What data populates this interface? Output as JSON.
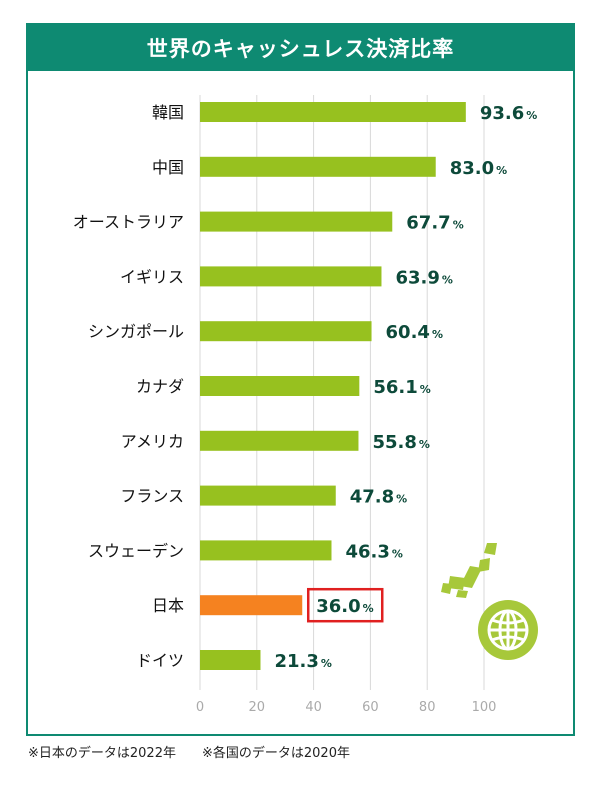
{
  "chart_data": {
    "type": "bar",
    "orientation": "horizontal",
    "title": "世界のキャッシュレス決済比率",
    "categories": [
      "韓国",
      "中国",
      "オーストラリア",
      "イギリス",
      "シンガポール",
      "カナダ",
      "アメリカ",
      "フランス",
      "スウェーデン",
      "日本",
      "ドイツ"
    ],
    "values": [
      93.6,
      83.0,
      67.7,
      63.9,
      60.4,
      56.1,
      55.8,
      47.8,
      46.3,
      36.0,
      21.3
    ],
    "value_labels": [
      "93.6",
      "83.0",
      "67.7",
      "63.9",
      "60.4",
      "56.1",
      "55.8",
      "47.8",
      "46.3",
      "36.0",
      "21.3"
    ],
    "unit": "%",
    "xlim": [
      0,
      100
    ],
    "xticks": [
      "0",
      "20",
      "40",
      "60",
      "80",
      "100"
    ],
    "grid": true,
    "highlight_category": "日本",
    "colors": {
      "bar": "#97c11f",
      "highlight_bar": "#f58220",
      "highlight_box": "#e02020",
      "value_text": "#0d4a3a",
      "title_bg": "#0e8a72",
      "grid": "#d9d9d9",
      "decoration": "#a7c83a"
    },
    "decorations": [
      "japan-map-icon",
      "globe-icon"
    ]
  },
  "notes": [
    "※日本のデータは2022年",
    "※各国のデータは2020年"
  ]
}
